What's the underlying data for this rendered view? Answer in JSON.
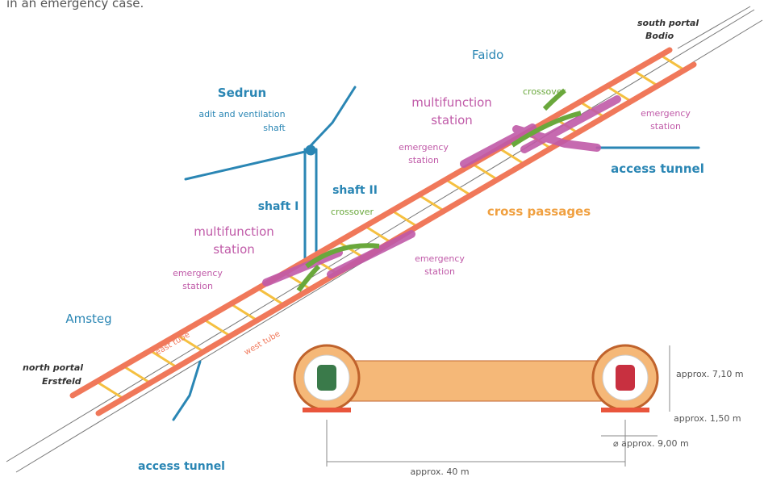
{
  "caption": "in an emergency case.",
  "labels": {
    "south_portal": [
      "south portal",
      "Bodio"
    ],
    "faido": "Faido",
    "sedrun": "Sedrun",
    "adit": [
      "adit and ventilation",
      "shaft"
    ],
    "crossover_top": "crossover",
    "multifunction_top": [
      "multifunction",
      "station"
    ],
    "emergency_top_right": [
      "emergency",
      "station"
    ],
    "emergency_top_left": [
      "emergency",
      "station"
    ],
    "access_tunnel_right": "access tunnel",
    "shaft_1": "shaft I",
    "shaft_2": "shaft II",
    "crossover_mid": "crossover",
    "cross_passages": "cross passages",
    "multifunction_low": [
      "multifunction",
      "station"
    ],
    "emergency_low_right": [
      "emergency",
      "station"
    ],
    "emergency_low_left": [
      "emergency",
      "station"
    ],
    "amsteg": "Amsteg",
    "east_tube": "east tube",
    "west_tube": "west tube",
    "north_portal": [
      "north portal",
      "Erstfeld"
    ],
    "access_tunnel_bottom": "access tunnel"
  },
  "dimensions": {
    "height": "approx. 7,10 m",
    "floor": "approx. 1,50 m",
    "diameter": "⌀ approx. 9,00 m",
    "spacing": "approx. 40 m"
  }
}
